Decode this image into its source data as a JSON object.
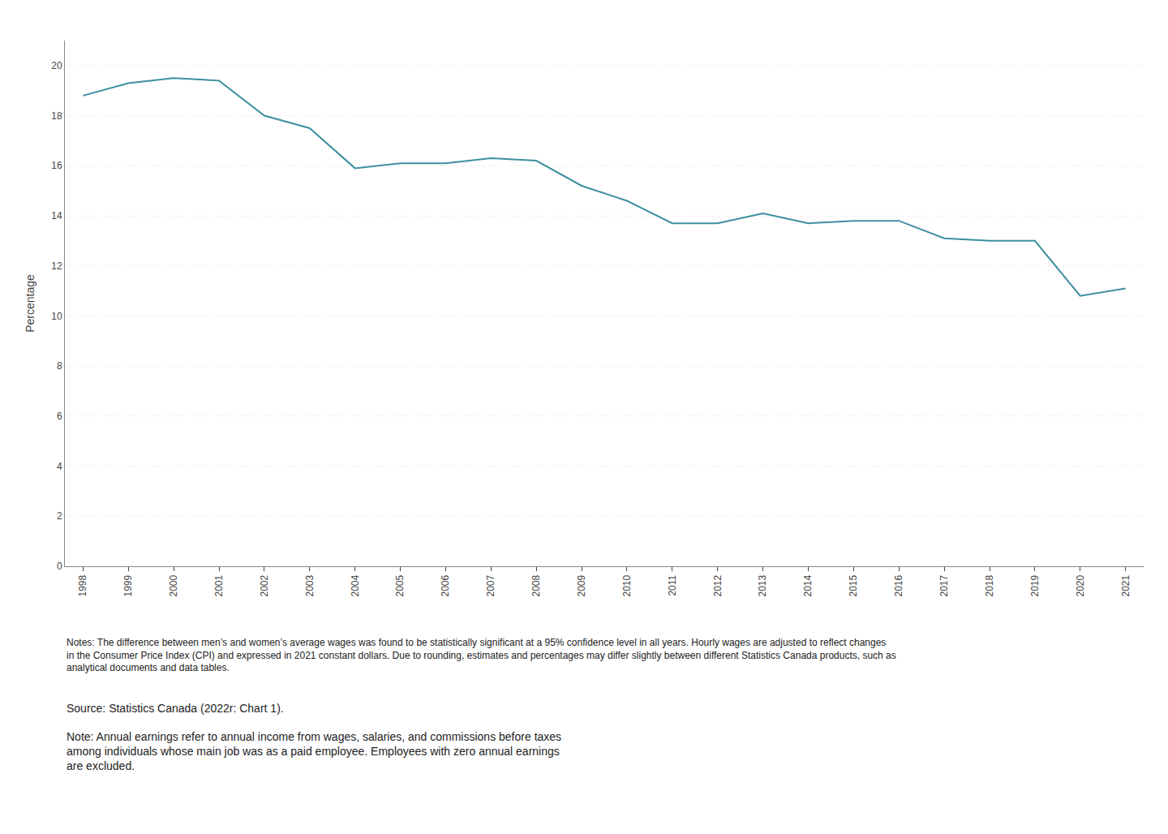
{
  "chart_data": {
    "type": "line",
    "x": [
      1998,
      1999,
      2000,
      2001,
      2002,
      2003,
      2004,
      2005,
      2006,
      2007,
      2008,
      2009,
      2010,
      2011,
      2012,
      2013,
      2014,
      2015,
      2016,
      2017,
      2018,
      2019,
      2020,
      2021
    ],
    "values": [
      18.8,
      19.3,
      19.5,
      19.4,
      18.0,
      17.5,
      15.9,
      16.1,
      16.1,
      16.3,
      16.2,
      15.2,
      14.6,
      13.7,
      13.7,
      14.1,
      13.7,
      13.8,
      13.8,
      13.1,
      13.0,
      13.0,
      10.8,
      11.1
    ],
    "color": "#3d8fa0",
    "ylabel": "Percentage",
    "xlim": [
      1997.6,
      2021.4
    ],
    "xticks": [
      1998,
      1999,
      2000,
      2001,
      2002,
      2003,
      2004,
      2005,
      2006,
      2007,
      2008,
      2009,
      2010,
      2011,
      2012,
      2013,
      2014,
      2015,
      2016,
      2017,
      2018,
      2019,
      2020,
      2021
    ],
    "ylim": [
      0,
      21
    ],
    "yticks": [
      0,
      2,
      4,
      6,
      8,
      10,
      12,
      14,
      16,
      18,
      20
    ],
    "grid": true,
    "annotations": [
      "Notes: The difference between men’s and women’s average wages was found to be statistically significant at a 95% confidence level in all years. Hourly wages are adjusted to reflect changes in the Consumer Price Index (CPI) and expressed in 2021 constant dollars. Due to rounding, estimates and percentages may differ slightly between different Statistics Canada products, such as analytical documents and data tables.",
      "Source: Statistics Canada (2022r: Chart 1).",
      "Note: Annual earnings refer to annual income from wages, salaries, and commissions before taxes\namong individuals whose main job was as a paid employee. Employees with zero annual earnings\nare excluded."
    ]
  }
}
